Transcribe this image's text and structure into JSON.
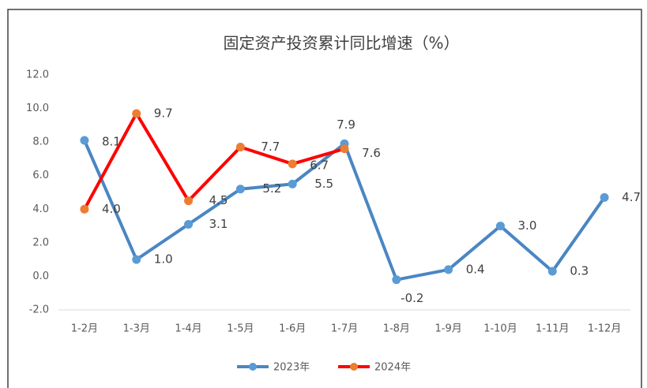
{
  "chart_data": {
    "type": "line",
    "title": "固定资产投资累计同比增速（%）",
    "categories": [
      "1-2月",
      "1-3月",
      "1-4月",
      "1-5月",
      "1-6月",
      "1-7月",
      "1-8月",
      "1-9月",
      "1-10月",
      "1-11月",
      "1-12月"
    ],
    "series": [
      {
        "name": "2023年",
        "color": "#4a86c3",
        "marker_color": "#5b9bd5",
        "values": [
          8.1,
          1.0,
          3.1,
          5.2,
          5.5,
          7.9,
          -0.2,
          0.4,
          3.0,
          0.3,
          4.7
        ],
        "value_labels": [
          "8.1",
          "1.0",
          "3.1",
          "5.2",
          "5.5",
          "7.9",
          "-0.2",
          "0.4",
          "3.0",
          "0.3",
          "4.7"
        ]
      },
      {
        "name": "2024年",
        "color": "#ff0000",
        "marker_color": "#ed7d31",
        "values": [
          4.0,
          9.7,
          4.5,
          7.7,
          6.7,
          7.6,
          null,
          null,
          null,
          null,
          null
        ],
        "value_labels": [
          "4.0",
          "9.7",
          "4.5",
          "7.7",
          "6.7",
          "7.6",
          null,
          null,
          null,
          null,
          null
        ]
      }
    ],
    "ylim": [
      -2,
      12
    ],
    "yticks": [
      {
        "value": -2,
        "label": "-2.0"
      },
      {
        "value": 0,
        "label": "0.0"
      },
      {
        "value": 2,
        "label": "2.0"
      },
      {
        "value": 4,
        "label": "4.0"
      },
      {
        "value": 6,
        "label": "6.0"
      },
      {
        "value": 8,
        "label": "8.0"
      },
      {
        "value": 10,
        "label": "10.0"
      },
      {
        "value": 12,
        "label": "12.0"
      }
    ],
    "grid": false,
    "legend": "bottom"
  }
}
